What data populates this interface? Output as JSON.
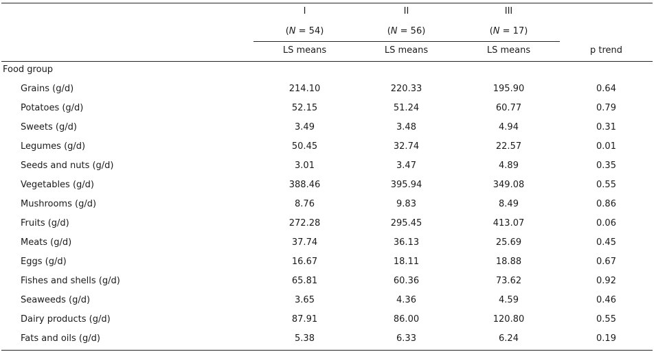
{
  "header": {
    "groups": [
      "I",
      "II",
      "III"
    ],
    "n_prefix": "(",
    "n_var": "N",
    "n_values": [
      " = 54)",
      " = 56)",
      " = 17)"
    ],
    "subheaders": [
      "LS means",
      "LS means",
      "LS means"
    ],
    "p_trend": "p trend"
  },
  "section_label": "Food group",
  "rows": [
    {
      "label": "Grains (g/d)",
      "v1": "214.10",
      "v2": "220.33",
      "v3": "195.90",
      "p": "0.64"
    },
    {
      "label": "Potatoes (g/d)",
      "v1": "52.15",
      "v2": "51.24",
      "v3": "60.77",
      "p": "0.79"
    },
    {
      "label": "Sweets (g/d)",
      "v1": "3.49",
      "v2": "3.48",
      "v3": "4.94",
      "p": "0.31"
    },
    {
      "label": "Legumes (g/d)",
      "v1": "50.45",
      "v2": "32.74",
      "v3": "22.57",
      "p": "0.01"
    },
    {
      "label": "Seeds and nuts (g/d)",
      "v1": "3.01",
      "v2": "3.47",
      "v3": "4.89",
      "p": "0.35"
    },
    {
      "label": "Vegetables (g/d)",
      "v1": "388.46",
      "v2": "395.94",
      "v3": "349.08",
      "p": "0.55"
    },
    {
      "label": "Mushrooms (g/d)",
      "v1": "8.76",
      "v2": "9.83",
      "v3": "8.49",
      "p": "0.86"
    },
    {
      "label": "Fruits (g/d)",
      "v1": "272.28",
      "v2": "295.45",
      "v3": "413.07",
      "p": "0.06"
    },
    {
      "label": "Meats (g/d)",
      "v1": "37.74",
      "v2": "36.13",
      "v3": "25.69",
      "p": "0.45"
    },
    {
      "label": "Eggs (g/d)",
      "v1": "16.67",
      "v2": "18.11",
      "v3": "18.88",
      "p": "0.67"
    },
    {
      "label": "Fishes and shells (g/d)",
      "v1": "65.81",
      "v2": "60.36",
      "v3": "73.62",
      "p": "0.92"
    },
    {
      "label": "Seaweeds (g/d)",
      "v1": "3.65",
      "v2": "4.36",
      "v3": "4.59",
      "p": "0.46"
    },
    {
      "label": "Dairy products (g/d)",
      "v1": "87.91",
      "v2": "86.00",
      "v3": "120.80",
      "p": "0.55"
    },
    {
      "label": "Fats and oils (g/d)",
      "v1": "5.38",
      "v2": "6.33",
      "v3": "6.24",
      "p": "0.19"
    }
  ]
}
